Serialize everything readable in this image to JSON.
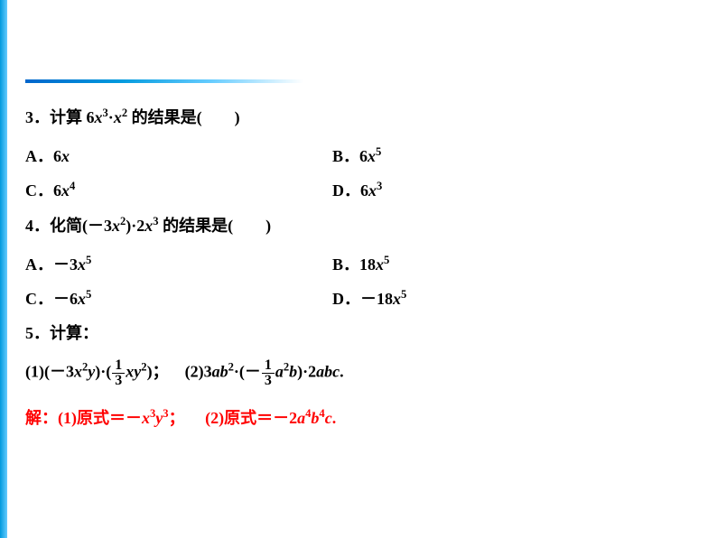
{
  "q3": {
    "num": "3．",
    "prefix": "计算 ",
    "expr_a": "6",
    "expr_b": "x",
    "expr_c": "3",
    "expr_d": "·",
    "expr_e": "x",
    "expr_f": "2",
    "suffix": " 的结果是(　　)",
    "opts": {
      "A_label": "A．",
      "A_n": "6",
      "A_v": "x",
      "B_label": "B．",
      "B_n": "6",
      "B_v": "x",
      "B_e": "5",
      "C_label": "C．",
      "C_n": "6",
      "C_v": "x",
      "C_e": "4",
      "D_label": "D．",
      "D_n": "6",
      "D_v": "x",
      "D_e": "3"
    }
  },
  "q4": {
    "num": "4．",
    "prefix": "化简(－",
    "e1": "3",
    "e2": "x",
    "e3": "2",
    "e4": ")·2",
    "e5": "x",
    "e6": "3",
    "suffix": " 的结果是(　　)",
    "opts": {
      "A_label": "A．－",
      "A_n": "3",
      "A_v": "x",
      "A_e": "5",
      "B_label": "B．",
      "B_n": "18",
      "B_v": "x",
      "B_e": "5",
      "C_label": "C．－",
      "C_n": "6",
      "C_v": "x",
      "C_e": "5",
      "D_label": "D．－",
      "D_n": "18",
      "D_v": "x",
      "D_e": "5"
    }
  },
  "q5": {
    "num": "5．",
    "title": "计算：",
    "p1_open": "(1)(－3",
    "p1_x": "x",
    "p1_2": "2",
    "p1_y": "y",
    "p1_mid": ")·(",
    "p1_fnum": "1",
    "p1_fden": "3",
    "p1_xy": "xy",
    "p1_e2": "2",
    "p1_close": ")；",
    "p2_open": "(2)3",
    "p2_ab": "ab",
    "p2_2": "2",
    "p2_mid": "·(－",
    "p2_fnum": "1",
    "p2_fden": "3",
    "p2_a": "a",
    "p2_e2": "2",
    "p2_b": "b",
    "p2_close": ")·2",
    "p2_abc": "abc",
    "p2_end": "."
  },
  "ans": {
    "label": "解：",
    "p1_pre": "(1)原式＝－",
    "p1_x": "x",
    "p1_e3": "3",
    "p1_y": "y",
    "p1_ye": "3",
    "p1_end": "；",
    "p2_pre": "(2)原式＝－2",
    "p2_a": "a",
    "p2_ae": "4",
    "p2_b": "b",
    "p2_be": "4",
    "p2_c": "c",
    "p2_end": "."
  },
  "colors": {
    "text": "#000000",
    "answer": "#ff0000",
    "bar_start": "#0099dd",
    "bar_end": "#66ccff",
    "rule": "#0066cc",
    "background": "#ffffff"
  }
}
